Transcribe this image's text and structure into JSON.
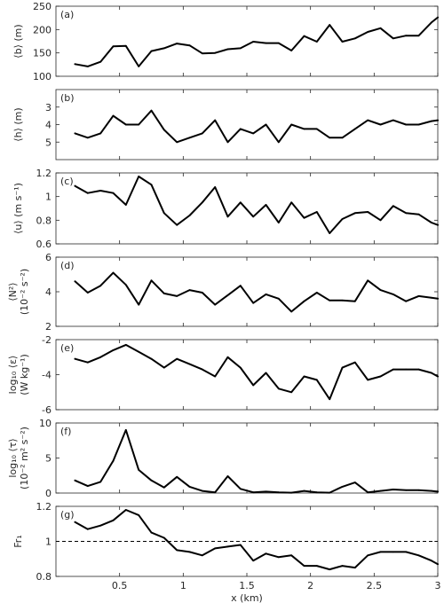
{
  "chart_data": {
    "type": "line",
    "colors": {
      "series": "#000000",
      "axis": "#262626"
    },
    "x": [
      0.15,
      0.25,
      0.35,
      0.45,
      0.55,
      0.65,
      0.75,
      0.85,
      0.95,
      1.05,
      1.15,
      1.25,
      1.35,
      1.45,
      1.55,
      1.65,
      1.75,
      1.85,
      1.95,
      2.05,
      2.15,
      2.25,
      2.35,
      2.45,
      2.55,
      2.65,
      2.75,
      2.85,
      2.95,
      3.0
    ],
    "xlabel": "x (km)",
    "xlim": [
      0,
      3
    ],
    "xticks": [
      "0.5",
      "1",
      "1.5",
      "2",
      "2.5",
      "3"
    ],
    "xtick_values": [
      0.5,
      1,
      1.5,
      2,
      2.5,
      3
    ],
    "panels": [
      {
        "id": "a",
        "label": "(a)",
        "ylabel_lines": [
          "⟨b⟩ (m)"
        ],
        "ylim": [
          100,
          250
        ],
        "yticks": [
          "100",
          "150",
          "200",
          "250"
        ],
        "ytick_values": [
          100,
          150,
          200,
          250
        ],
        "values": [
          126,
          121,
          131,
          164,
          165,
          121,
          154,
          160,
          170,
          166,
          149,
          150,
          158,
          160,
          174,
          171,
          171,
          155,
          186,
          174,
          210,
          174,
          181,
          195,
          203,
          181,
          187,
          187,
          215,
          226
        ]
      },
      {
        "id": "b",
        "label": "(b)",
        "ylabel_lines": [
          "⟨h⟩ (m)"
        ],
        "ylim": [
          2,
          6
        ],
        "reversed": true,
        "yticks": [
          "3",
          "4",
          "5"
        ],
        "ytick_values": [
          3,
          4,
          5
        ],
        "values": [
          4.5,
          4.75,
          4.5,
          3.5,
          4.0,
          4.0,
          3.2,
          4.3,
          5.0,
          4.75,
          4.5,
          3.75,
          5.0,
          4.25,
          4.5,
          4.0,
          5.0,
          4.0,
          4.25,
          4.25,
          4.75,
          4.75,
          4.25,
          3.75,
          4.0,
          3.75,
          4.0,
          4.0,
          3.8,
          3.75
        ]
      },
      {
        "id": "c",
        "label": "(c)",
        "ylabel_lines": [
          "⟨u⟩ (m s⁻¹)"
        ],
        "ylim": [
          0.6,
          1.2
        ],
        "yticks": [
          "0.6",
          "0.8",
          "1",
          "1.2"
        ],
        "ytick_values": [
          0.6,
          0.8,
          1.0,
          1.2
        ],
        "values": [
          1.09,
          1.03,
          1.05,
          1.03,
          0.93,
          1.17,
          1.1,
          0.86,
          0.76,
          0.84,
          0.95,
          1.08,
          0.83,
          0.95,
          0.83,
          0.93,
          0.78,
          0.95,
          0.82,
          0.87,
          0.69,
          0.81,
          0.86,
          0.87,
          0.8,
          0.92,
          0.86,
          0.85,
          0.78,
          0.76
        ]
      },
      {
        "id": "d",
        "label": "(d)",
        "ylabel_lines": [
          "⟨N²⟩",
          "(10⁻² s⁻²)"
        ],
        "ylim": [
          2,
          6
        ],
        "yticks": [
          "2",
          "4",
          "6"
        ],
        "ytick_values": [
          2,
          4,
          6
        ],
        "values": [
          4.6,
          3.95,
          4.35,
          5.1,
          4.4,
          3.25,
          4.65,
          3.9,
          3.75,
          4.1,
          3.95,
          3.25,
          3.8,
          4.35,
          3.35,
          3.85,
          3.6,
          2.85,
          3.45,
          3.95,
          3.5,
          3.5,
          3.45,
          4.65,
          4.1,
          3.85,
          3.45,
          3.75,
          3.65,
          3.6
        ]
      },
      {
        "id": "e",
        "label": "(e)",
        "ylabel_lines": [
          "log₁₀ ⟨ε⟩",
          "(W kg⁻¹)"
        ],
        "ylim": [
          -6,
          -2
        ],
        "yticks": [
          "-6",
          "-4",
          "-2"
        ],
        "ytick_values": [
          -6,
          -4,
          -2
        ],
        "values": [
          -3.1,
          -3.3,
          -3.0,
          -2.6,
          -2.3,
          -2.7,
          -3.1,
          -3.6,
          -3.1,
          -3.4,
          -3.7,
          -4.1,
          -3.0,
          -3.6,
          -4.6,
          -3.9,
          -4.8,
          -5.0,
          -4.1,
          -4.3,
          -5.4,
          -3.6,
          -3.3,
          -4.3,
          -4.1,
          -3.7,
          -3.7,
          -3.7,
          -3.9,
          -4.1
        ]
      },
      {
        "id": "f",
        "label": "(f)",
        "ylabel_lines": [
          "log₁₀ ⟨τ⟩",
          "(10⁻² m² s⁻²)"
        ],
        "ylim": [
          0,
          10
        ],
        "yticks": [
          "0",
          "5",
          "10"
        ],
        "ytick_values": [
          0,
          5,
          10
        ],
        "values": [
          1.8,
          1.0,
          1.6,
          4.6,
          9.0,
          3.3,
          1.8,
          0.8,
          2.3,
          0.9,
          0.3,
          0.1,
          2.4,
          0.6,
          0.1,
          0.2,
          0.1,
          0.05,
          0.3,
          0.1,
          0.05,
          0.9,
          1.5,
          0.1,
          0.3,
          0.5,
          0.4,
          0.4,
          0.3,
          0.2
        ]
      },
      {
        "id": "g",
        "label": "(g)",
        "ylabel_lines": [
          "Fr₁"
        ],
        "ylim": [
          0.8,
          1.2
        ],
        "yticks": [
          "0.8",
          "1",
          "1.2"
        ],
        "ytick_values": [
          0.8,
          1.0,
          1.2
        ],
        "reference_line": 1.0,
        "values": [
          1.11,
          1.07,
          1.09,
          1.12,
          1.18,
          1.15,
          1.05,
          1.02,
          0.95,
          0.94,
          0.92,
          0.96,
          0.97,
          0.98,
          0.89,
          0.93,
          0.91,
          0.92,
          0.86,
          0.86,
          0.84,
          0.86,
          0.85,
          0.92,
          0.94,
          0.94,
          0.94,
          0.92,
          0.89,
          0.87
        ]
      }
    ]
  }
}
